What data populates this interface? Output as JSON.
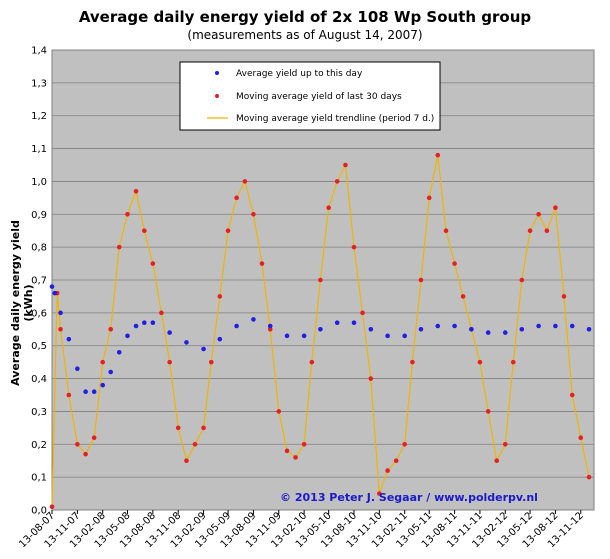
{
  "chart_data": {
    "type": "line",
    "title": "Average daily energy yield of 2x 108 Wp South group",
    "subtitle": "(measurements as of August 14, 2007)",
    "xlabel": "",
    "ylabel": "Average daily energy yield (kWh)",
    "ylim": [
      0,
      1.4
    ],
    "yticks": [
      "0,0",
      "0,1",
      "0,2",
      "0,3",
      "0,4",
      "0,5",
      "0,6",
      "0,7",
      "0,8",
      "0,9",
      "1,0",
      "1,1",
      "1,2",
      "1,3",
      "1,4"
    ],
    "xtick_labels": [
      "13-08-07",
      "13-11-07",
      "13-02-08",
      "13-05-08",
      "13-08-08",
      "13-11-08",
      "13-02-09",
      "13-05-09",
      "13-08-09",
      "13-11-09",
      "13-02-10",
      "13-05-10",
      "13-08-10",
      "13-11-10",
      "13-02-11",
      "13-05-11",
      "13-08-11",
      "13-11-11",
      "13-02-12",
      "13-05-12",
      "13-08-12",
      "13-11-12"
    ],
    "grid": true,
    "legend_position": "top-center",
    "copyright": "© 2013 Peter J. Segaar / www.polderpv.nl",
    "series": [
      {
        "name": "Average yield up to this day",
        "style": "dots",
        "color": "#1f1fe6",
        "x": [
          "13-08-07",
          "23-08-07",
          "13-09-07",
          "13-10-07",
          "13-11-07",
          "13-12-07",
          "13-01-08",
          "13-02-08",
          "13-03-08",
          "13-04-08",
          "13-05-08",
          "13-06-08",
          "13-07-08",
          "13-08-08",
          "13-10-08",
          "13-12-08",
          "13-02-09",
          "13-04-09",
          "13-06-09",
          "13-08-09",
          "13-10-09",
          "13-12-09",
          "13-02-10",
          "13-04-10",
          "13-06-10",
          "13-08-10",
          "13-10-10",
          "13-12-10",
          "13-02-11",
          "13-04-11",
          "13-06-11",
          "13-08-11",
          "13-10-11",
          "13-12-11",
          "13-02-12",
          "13-04-12",
          "13-06-12",
          "13-08-12",
          "13-10-12",
          "13-12-12"
        ],
        "values": [
          0.68,
          0.66,
          0.6,
          0.52,
          0.43,
          0.36,
          0.36,
          0.38,
          0.42,
          0.48,
          0.53,
          0.56,
          0.57,
          0.57,
          0.54,
          0.51,
          0.49,
          0.52,
          0.56,
          0.58,
          0.56,
          0.53,
          0.53,
          0.55,
          0.57,
          0.57,
          0.55,
          0.53,
          0.53,
          0.55,
          0.56,
          0.56,
          0.55,
          0.54,
          0.54,
          0.55,
          0.56,
          0.56,
          0.56,
          0.55
        ]
      },
      {
        "name": "Moving average yield of last 30 days",
        "style": "dots",
        "color": "#e62020",
        "x": [
          "13-08-07",
          "01-09-07",
          "13-09-07",
          "13-10-07",
          "13-11-07",
          "13-12-07",
          "13-01-08",
          "13-02-08",
          "13-03-08",
          "13-04-08",
          "13-05-08",
          "13-06-08",
          "13-07-08",
          "13-08-08",
          "13-09-08",
          "13-10-08",
          "13-11-08",
          "13-12-08",
          "13-01-09",
          "13-02-09",
          "13-03-09",
          "13-04-09",
          "13-05-09",
          "13-06-09",
          "13-07-09",
          "13-08-09",
          "13-09-09",
          "13-10-09",
          "13-11-09",
          "13-12-09",
          "13-01-10",
          "13-02-10",
          "13-03-10",
          "13-04-10",
          "13-05-10",
          "13-06-10",
          "13-07-10",
          "13-08-10",
          "13-09-10",
          "13-10-10",
          "13-11-10",
          "13-12-10",
          "13-01-11",
          "13-02-11",
          "13-03-11",
          "13-04-11",
          "13-05-11",
          "13-06-11",
          "13-07-11",
          "13-08-11",
          "13-09-11",
          "13-10-11",
          "13-11-11",
          "13-12-11",
          "13-01-12",
          "13-02-12",
          "13-03-12",
          "13-04-12",
          "13-05-12",
          "13-06-12",
          "13-07-12",
          "13-08-12",
          "13-09-12",
          "13-10-12",
          "13-11-12",
          "13-12-12"
        ],
        "values": [
          0.01,
          0.66,
          0.55,
          0.35,
          0.2,
          0.17,
          0.22,
          0.45,
          0.55,
          0.8,
          0.9,
          0.97,
          0.85,
          0.75,
          0.6,
          0.45,
          0.25,
          0.15,
          0.2,
          0.25,
          0.45,
          0.65,
          0.85,
          0.95,
          1.0,
          0.9,
          0.75,
          0.55,
          0.3,
          0.18,
          0.16,
          0.2,
          0.45,
          0.7,
          0.92,
          1.0,
          1.05,
          0.8,
          0.6,
          0.4,
          0.05,
          0.12,
          0.15,
          0.2,
          0.45,
          0.7,
          0.95,
          1.08,
          0.85,
          0.75,
          0.65,
          0.55,
          0.45,
          0.3,
          0.15,
          0.2,
          0.45,
          0.7,
          0.85,
          0.9,
          0.85,
          0.92,
          0.65,
          0.35,
          0.22,
          0.1
        ]
      },
      {
        "name": "Moving average yield trendline (period 7 d.)",
        "style": "line",
        "color": "#f0b400"
      }
    ]
  }
}
